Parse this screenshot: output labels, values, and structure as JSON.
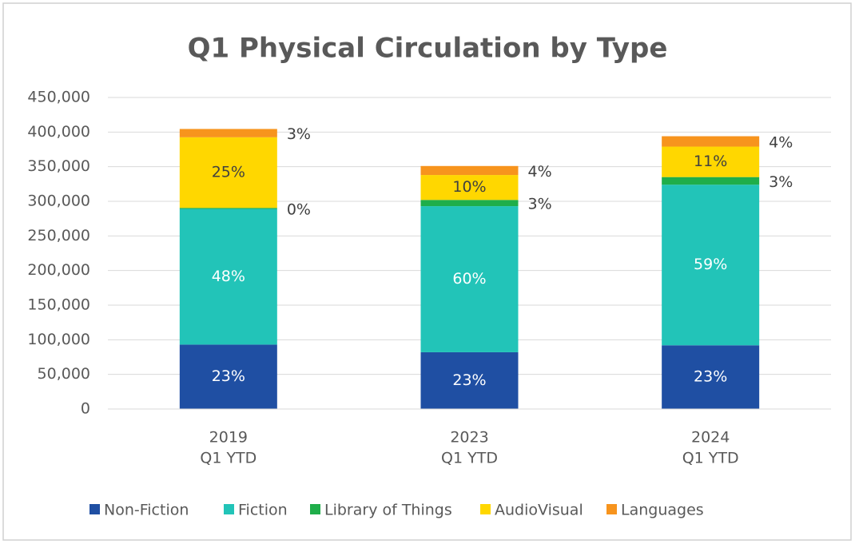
{
  "chart_data": {
    "type": "stacked_bar",
    "title": "Q1 Physical Circulation by Type",
    "categories": [
      [
        "2019",
        "Q1 YTD"
      ],
      [
        "2023",
        "Q1 YTD"
      ],
      [
        "2024",
        "Q1 YTD"
      ]
    ],
    "series": [
      {
        "name": "Non-Fiction",
        "color": "#1f4fa3",
        "label_color": "#ffffff",
        "label_position": "inside",
        "values": [
          93000,
          82000,
          92000
        ],
        "share_labels": [
          "23%",
          "23%",
          "23%"
        ]
      },
      {
        "name": "Fiction",
        "color": "#22c4b8",
        "label_color": "#ffffff",
        "label_position": "inside",
        "values": [
          196000,
          211000,
          232000
        ],
        "share_labels": [
          "48%",
          "60%",
          "59%"
        ]
      },
      {
        "name": "Library of Things",
        "color": "#1fae4a",
        "label_color": "#404040",
        "label_position": "right",
        "values": [
          1500,
          9000,
          11000
        ],
        "share_labels": [
          "0%",
          "3%",
          "3%"
        ]
      },
      {
        "name": "AudioVisual",
        "color": "#ffd700",
        "label_color": "#404040",
        "label_position": "inside",
        "values": [
          102000,
          36000,
          44000
        ],
        "share_labels": [
          "25%",
          "10%",
          "11%"
        ]
      },
      {
        "name": "Languages",
        "color": "#f7941d",
        "label_color": "#404040",
        "label_position": "right",
        "values": [
          12000,
          13000,
          15000
        ],
        "share_labels": [
          "3%",
          "4%",
          "4%"
        ]
      }
    ],
    "ylim": [
      0,
      450000
    ],
    "yticks": [
      0,
      {
        "value": 50000,
        "label": "50,000"
      },
      {
        "value": 100000,
        "label": "100,000"
      },
      {
        "value": 150000,
        "label": "150,000"
      },
      {
        "value": 200000,
        "label": "200,000"
      },
      {
        "value": 250000,
        "label": "250,000"
      },
      {
        "value": 300000,
        "label": "300,000"
      },
      {
        "value": 350000,
        "label": "350,000"
      },
      {
        "value": 400000,
        "label": "400,000"
      },
      {
        "value": 450000,
        "label": "450,000"
      }
    ],
    "grid": true,
    "legend": "bottom"
  }
}
